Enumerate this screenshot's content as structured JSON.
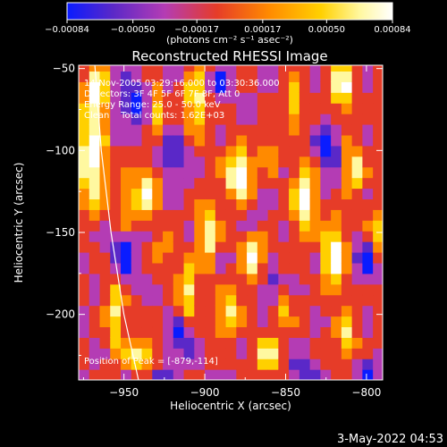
{
  "chart_data": {
    "type": "heatmap",
    "title": "Reconstructed RHESSI Image",
    "xlabel": "Heliocentric X (arcsec)",
    "ylabel": "Heliocentric Y (arcsec)",
    "xlim": [
      -978,
      -790
    ],
    "ylim": [
      -240,
      -48
    ],
    "x_ticks": [
      -950,
      -900,
      -850,
      -800
    ],
    "x_tick_labels": [
      "−950",
      "−900",
      "−850",
      "−800"
    ],
    "y_ticks": [
      -50,
      -100,
      -150,
      -200
    ],
    "y_tick_labels": [
      "−50",
      "−100",
      "−150",
      "−200"
    ],
    "colorbar": {
      "range": [
        -0.00084,
        0.00084
      ],
      "ticks": [
        -0.00084,
        -0.0005,
        -0.00017,
        0.00017,
        0.0005,
        0.00084
      ],
      "tick_labels": [
        "−0.00084",
        "−0.00050",
        "−0.00017",
        "0.00017",
        "0.00050",
        "0.00084"
      ],
      "unit_label": "(photons cm⁻² s⁻¹ asec⁻²)",
      "colors": [
        "#0a1cff",
        "#5a28c8",
        "#b43cb4",
        "#e63c28",
        "#ff8a00",
        "#ffd000",
        "#fff8a0",
        "#ffffff"
      ]
    },
    "annotations": [
      "14-Nov-2005 03:29:16.000 to 03:30:36.000",
      "Detectors: 3F 4F 5F 6F 7F 8F, Att 0",
      "Energy Range: 25.0 - 50.0 keV",
      "Clean    Total counts: 1.62E+03"
    ],
    "peak_label": "Position of Peak = [-879,-114]",
    "peak": [
      -879,
      -114
    ],
    "limb_curve": [
      [
        -968,
        -48
      ],
      [
        -964,
        -100
      ],
      [
        -958,
        -150
      ],
      [
        -950,
        -200
      ],
      [
        -941,
        -240
      ]
    ]
  },
  "footer": {
    "date": "3-May-2022 04:53"
  }
}
